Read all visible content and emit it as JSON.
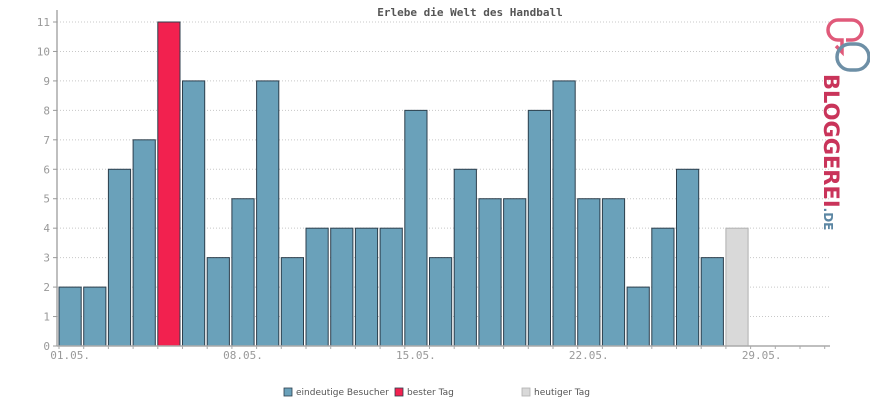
{
  "chart_data": {
    "type": "bar",
    "title": "Erlebe die Welt des Handball",
    "ylim": [
      0,
      11
    ],
    "yticks": [
      "0",
      "1",
      "2",
      "3",
      "4",
      "5",
      "6",
      "7",
      "8",
      "9",
      "10",
      "11"
    ],
    "xticks": [
      {
        "index": 0,
        "label": "01.05."
      },
      {
        "index": 7,
        "label": "08.05."
      },
      {
        "index": 14,
        "label": "15.05."
      },
      {
        "index": 21,
        "label": "22.05."
      },
      {
        "index": 28,
        "label": "29.05."
      }
    ],
    "days": 31,
    "values": [
      2,
      2,
      6,
      7,
      11,
      9,
      3,
      5,
      9,
      3,
      4,
      4,
      4,
      4,
      8,
      3,
      6,
      5,
      5,
      8,
      9,
      5,
      5,
      2,
      4,
      6,
      3,
      4
    ],
    "best_index": 4,
    "today_index": 27,
    "grid": true,
    "legend_position": "bottom-center",
    "colors": {
      "visitors": "#6aa1ba",
      "best": "#f2214f",
      "today": "#d9d9d9",
      "border": "#2c3e4c",
      "today_border": "#b0b0b0"
    },
    "legend": [
      {
        "key": "visitors",
        "label": "eindeutige Besucher"
      },
      {
        "key": "best",
        "label": "bester Tag"
      },
      {
        "key": "today",
        "label": "heutiger Tag"
      }
    ]
  },
  "logo": {
    "text_main": "BLOGGEREI",
    "text_suffix": ".DE",
    "color_main": "#c9345a",
    "color_suffix": "#5b86a3"
  }
}
